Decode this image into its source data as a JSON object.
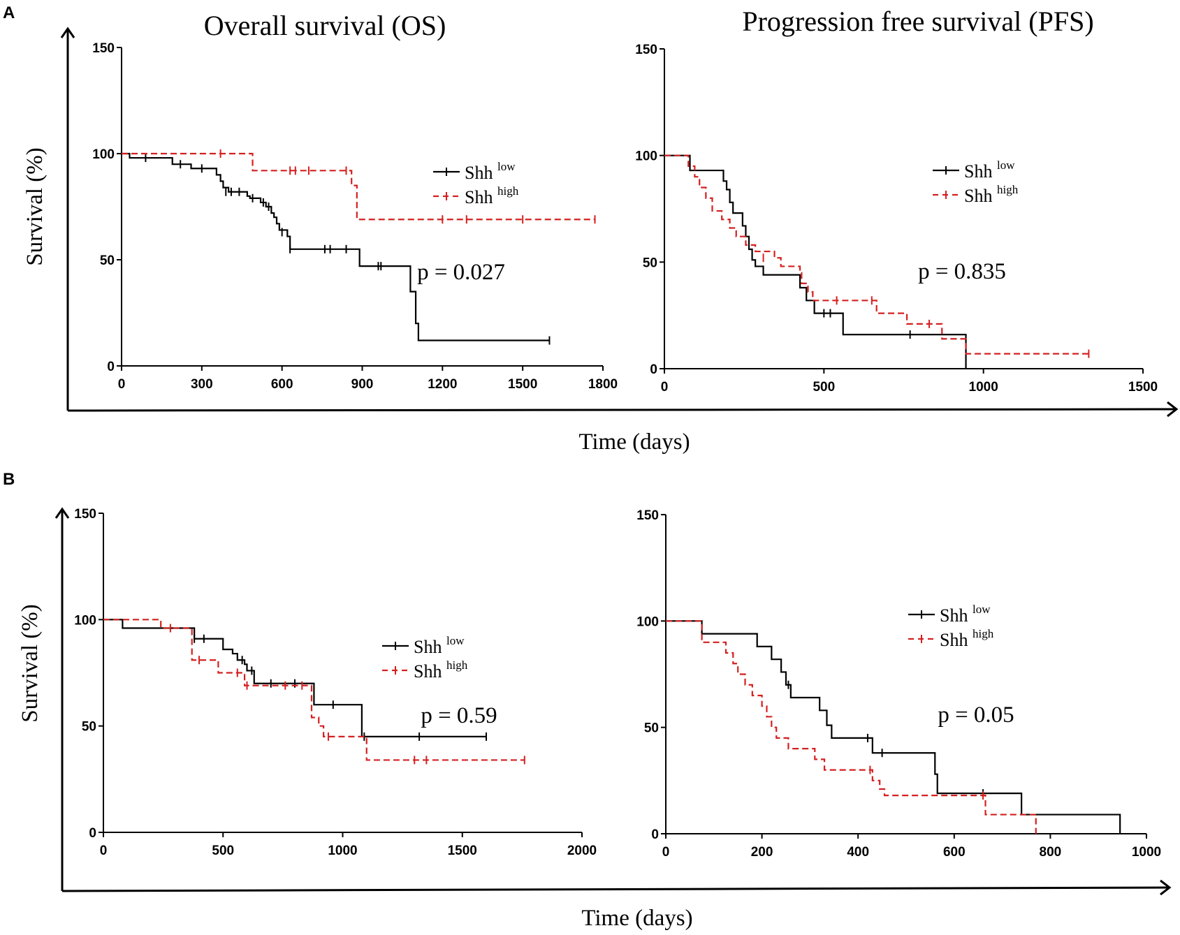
{
  "panel_labels": [
    "A",
    "B"
  ],
  "shared_labels": {
    "time_label_a": "Time (days)",
    "time_label_b": "Time (days)"
  },
  "colors": {
    "shh_low": "#000000",
    "shh_high": "#d42020"
  },
  "chart_data": [
    {
      "id": "A-OS",
      "type": "line",
      "title": "Overall survival (OS)",
      "xlabel": "",
      "ylabel": "Survival (%)",
      "xlim": [
        0,
        1800
      ],
      "ylim": [
        0,
        150
      ],
      "xticks": [
        "0",
        "300",
        "600",
        "900",
        "1200",
        "1500",
        "1800"
      ],
      "yticks": [
        "0",
        "50",
        "100",
        "150"
      ],
      "legend": [
        "Shh",
        "low",
        "Shh",
        "high"
      ],
      "p_value": "p = 0.027",
      "series": [
        {
          "name": "Shh low",
          "style": "solid",
          "steps": [
            [
              0,
              100
            ],
            [
              30,
              98
            ],
            [
              190,
              95
            ],
            [
              260,
              93
            ],
            [
              355,
              90
            ],
            [
              370,
              87
            ],
            [
              380,
              84
            ],
            [
              400,
              82
            ],
            [
              470,
              80
            ],
            [
              480,
              79
            ],
            [
              520,
              77
            ],
            [
              540,
              75
            ],
            [
              560,
              72
            ],
            [
              570,
              70
            ],
            [
              580,
              67
            ],
            [
              590,
              64
            ],
            [
              620,
              61
            ],
            [
              630,
              55
            ],
            [
              880,
              55
            ],
            [
              890,
              47
            ],
            [
              1070,
              47
            ],
            [
              1080,
              35
            ],
            [
              1100,
              20
            ],
            [
              1110,
              12
            ],
            [
              1600,
              12
            ]
          ],
          "censors": [
            [
              90,
              98
            ],
            [
              220,
              95
            ],
            [
              300,
              93
            ],
            [
              390,
              82
            ],
            [
              410,
              82
            ],
            [
              440,
              82
            ],
            [
              490,
              79
            ],
            [
              530,
              77
            ],
            [
              550,
              75
            ],
            [
              600,
              63
            ],
            [
              630,
              55
            ],
            [
              760,
              55
            ],
            [
              780,
              55
            ],
            [
              840,
              55
            ],
            [
              960,
              47
            ],
            [
              970,
              47
            ],
            [
              1600,
              12
            ]
          ]
        },
        {
          "name": "Shh high",
          "style": "dashed",
          "steps": [
            [
              0,
              100
            ],
            [
              480,
              100
            ],
            [
              490,
              92
            ],
            [
              850,
              92
            ],
            [
              860,
              85
            ],
            [
              880,
              69
            ],
            [
              1770,
              69
            ]
          ],
          "censors": [
            [
              370,
              100
            ],
            [
              630,
              92
            ],
            [
              650,
              92
            ],
            [
              700,
              92
            ],
            [
              840,
              92
            ],
            [
              1200,
              69
            ],
            [
              1290,
              69
            ],
            [
              1500,
              69
            ],
            [
              1770,
              69
            ]
          ]
        }
      ]
    },
    {
      "id": "A-PFS",
      "type": "line",
      "title": "Progression free survival (PFS)",
      "xlabel": "",
      "ylabel": "",
      "xlim": [
        0,
        1500
      ],
      "ylim": [
        0,
        150
      ],
      "xticks": [
        "0",
        "500",
        "1000",
        "1500"
      ],
      "yticks": [
        "0",
        "50",
        "100",
        "150"
      ],
      "legend": [
        "Shh",
        "low",
        "Shh",
        "high"
      ],
      "p_value": "p =  0.835",
      "series": [
        {
          "name": "Shh low",
          "style": "solid",
          "steps": [
            [
              0,
              100
            ],
            [
              70,
              100
            ],
            [
              80,
              93
            ],
            [
              170,
              93
            ],
            [
              185,
              88
            ],
            [
              195,
              84
            ],
            [
              205,
              78
            ],
            [
              215,
              73
            ],
            [
              235,
              73
            ],
            [
              245,
              67
            ],
            [
              255,
              62
            ],
            [
              265,
              56
            ],
            [
              275,
              51
            ],
            [
              285,
              48
            ],
            [
              310,
              44
            ],
            [
              415,
              44
            ],
            [
              425,
              38
            ],
            [
              445,
              32
            ],
            [
              470,
              26
            ],
            [
              535,
              26
            ],
            [
              560,
              16
            ],
            [
              940,
              16
            ],
            [
              945,
              0
            ]
          ],
          "censors": [
            [
              500,
              26
            ],
            [
              520,
              26
            ],
            [
              770,
              16
            ]
          ]
        },
        {
          "name": "Shh high",
          "style": "dashed",
          "steps": [
            [
              0,
              100
            ],
            [
              65,
              100
            ],
            [
              75,
              95
            ],
            [
              95,
              90
            ],
            [
              110,
              85
            ],
            [
              130,
              80
            ],
            [
              150,
              74
            ],
            [
              180,
              70
            ],
            [
              205,
              66
            ],
            [
              225,
              62
            ],
            [
              255,
              58
            ],
            [
              285,
              55
            ],
            [
              345,
              52
            ],
            [
              365,
              48
            ],
            [
              425,
              45
            ],
            [
              430,
              40
            ],
            [
              450,
              36
            ],
            [
              465,
              32
            ],
            [
              650,
              32
            ],
            [
              665,
              26
            ],
            [
              745,
              26
            ],
            [
              760,
              21
            ],
            [
              860,
              21
            ],
            [
              870,
              14
            ],
            [
              930,
              14
            ],
            [
              945,
              7
            ],
            [
              1330,
              7
            ]
          ],
          "censors": [
            [
              310,
              52
            ],
            [
              540,
              32
            ],
            [
              650,
              32
            ],
            [
              830,
              21
            ],
            [
              1330,
              7
            ]
          ]
        }
      ]
    },
    {
      "id": "B-OS",
      "type": "line",
      "title": "",
      "xlabel": "",
      "ylabel": "Survival (%)",
      "xlim": [
        0,
        2000
      ],
      "ylim": [
        0,
        150
      ],
      "xticks": [
        "0",
        "500",
        "1000",
        "1500",
        "2000"
      ],
      "yticks": [
        "0",
        "50",
        "100",
        "150"
      ],
      "legend": [
        "Shh",
        "low",
        "Shh",
        "high"
      ],
      "p_value": "p = 0.59",
      "series": [
        {
          "name": "Shh low",
          "style": "solid",
          "steps": [
            [
              0,
              100
            ],
            [
              80,
              96
            ],
            [
              370,
              96
            ],
            [
              380,
              91
            ],
            [
              480,
              91
            ],
            [
              500,
              86
            ],
            [
              540,
              84
            ],
            [
              560,
              81
            ],
            [
              590,
              79
            ],
            [
              600,
              76
            ],
            [
              630,
              70
            ],
            [
              870,
              70
            ],
            [
              880,
              60
            ],
            [
              1070,
              60
            ],
            [
              1080,
              45
            ],
            [
              1600,
              45
            ]
          ],
          "censors": [
            [
              380,
              91
            ],
            [
              420,
              91
            ],
            [
              580,
              81
            ],
            [
              620,
              76
            ],
            [
              700,
              70
            ],
            [
              800,
              70
            ],
            [
              960,
              60
            ],
            [
              1090,
              45
            ],
            [
              1320,
              45
            ],
            [
              1600,
              45
            ]
          ]
        },
        {
          "name": "Shh high",
          "style": "dashed",
          "steps": [
            [
              0,
              100
            ],
            [
              230,
              100
            ],
            [
              240,
              96
            ],
            [
              360,
              96
            ],
            [
              370,
              81
            ],
            [
              470,
              81
            ],
            [
              480,
              75
            ],
            [
              580,
              75
            ],
            [
              590,
              69
            ],
            [
              850,
              69
            ],
            [
              870,
              54
            ],
            [
              900,
              50
            ],
            [
              920,
              45
            ],
            [
              1090,
              45
            ],
            [
              1100,
              34
            ],
            [
              1760,
              34
            ]
          ],
          "censors": [
            [
              280,
              96
            ],
            [
              400,
              81
            ],
            [
              560,
              75
            ],
            [
              600,
              69
            ],
            [
              760,
              69
            ],
            [
              830,
              69
            ],
            [
              940,
              45
            ],
            [
              1300,
              34
            ],
            [
              1350,
              34
            ],
            [
              1760,
              34
            ]
          ]
        }
      ]
    },
    {
      "id": "B-PFS",
      "type": "line",
      "title": "",
      "xlabel": "",
      "ylabel": "",
      "xlim": [
        0,
        1000
      ],
      "ylim": [
        0,
        150
      ],
      "xticks": [
        "0",
        "200",
        "400",
        "600",
        "800",
        "1000"
      ],
      "yticks": [
        "0",
        "50",
        "100",
        "150"
      ],
      "legend": [
        "Shh",
        "low",
        "Shh",
        "high"
      ],
      "p_value": "p = 0.05",
      "series": [
        {
          "name": "Shh low",
          "style": "solid",
          "steps": [
            [
              0,
              100
            ],
            [
              75,
              94
            ],
            [
              185,
              94
            ],
            [
              190,
              88
            ],
            [
              215,
              88
            ],
            [
              220,
              82
            ],
            [
              240,
              76
            ],
            [
              250,
              70
            ],
            [
              260,
              64
            ],
            [
              315,
              64
            ],
            [
              320,
              58
            ],
            [
              335,
              51
            ],
            [
              345,
              45
            ],
            [
              425,
              45
            ],
            [
              430,
              38
            ],
            [
              555,
              38
            ],
            [
              560,
              28
            ],
            [
              565,
              19
            ],
            [
              735,
              19
            ],
            [
              740,
              9
            ],
            [
              940,
              9
            ],
            [
              945,
              0
            ]
          ],
          "censors": [
            [
              255,
              70
            ],
            [
              420,
              45
            ],
            [
              450,
              38
            ],
            [
              660,
              19
            ]
          ]
        },
        {
          "name": "Shh high",
          "style": "dashed",
          "steps": [
            [
              0,
              100
            ],
            [
              70,
              100
            ],
            [
              75,
              90
            ],
            [
              110,
              90
            ],
            [
              125,
              85
            ],
            [
              140,
              80
            ],
            [
              150,
              75
            ],
            [
              165,
              70
            ],
            [
              180,
              65
            ],
            [
              200,
              60
            ],
            [
              210,
              55
            ],
            [
              220,
              50
            ],
            [
              230,
              45
            ],
            [
              255,
              40
            ],
            [
              300,
              40
            ],
            [
              310,
              35
            ],
            [
              330,
              30
            ],
            [
              420,
              30
            ],
            [
              430,
              25
            ],
            [
              445,
              21
            ],
            [
              455,
              18
            ],
            [
              660,
              18
            ],
            [
              665,
              9
            ],
            [
              765,
              9
            ],
            [
              770,
              0
            ]
          ],
          "censors": [
            [
              425,
              30
            ],
            [
              660,
              18
            ]
          ]
        }
      ]
    }
  ]
}
